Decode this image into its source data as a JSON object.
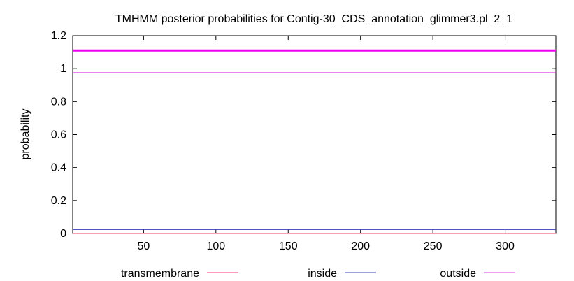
{
  "chart_data": {
    "type": "line",
    "title": "TMHMM posterior probabilities for Contig-30_CDS_annotation_glimmer3.pl_2_1",
    "xlabel": "",
    "ylabel": "probability",
    "xlim": [
      1,
      335
    ],
    "ylim": [
      0,
      1.2
    ],
    "x_ticks": [
      50,
      100,
      150,
      200,
      250,
      300
    ],
    "y_ticks": [
      0,
      0.2,
      0.4,
      0.6,
      0.8,
      1,
      1.2
    ],
    "x_tick_labels": [
      "50",
      "100",
      "150",
      "200",
      "250",
      "300"
    ],
    "y_tick_labels": [
      "0",
      "0.2",
      "0.4",
      "0.6",
      "0.8",
      "1",
      "1.2"
    ],
    "grid": false,
    "legend_position": "bottom",
    "series": [
      {
        "name": "transmembrane",
        "color": "#ff3b7a",
        "x": [
          1,
          335
        ],
        "values": [
          0.0,
          0.0
        ]
      },
      {
        "name": "inside",
        "color": "#3b3bb5",
        "x": [
          1,
          335
        ],
        "values": [
          0.024,
          0.024
        ]
      },
      {
        "name": "outside",
        "color": "#e23be2",
        "x": [
          1,
          335
        ],
        "values": [
          0.976,
          0.976
        ]
      }
    ],
    "annotations": [
      {
        "type": "hline",
        "y": 1.11,
        "color": "#ee00ee",
        "note": "thick bar above plot"
      }
    ]
  }
}
